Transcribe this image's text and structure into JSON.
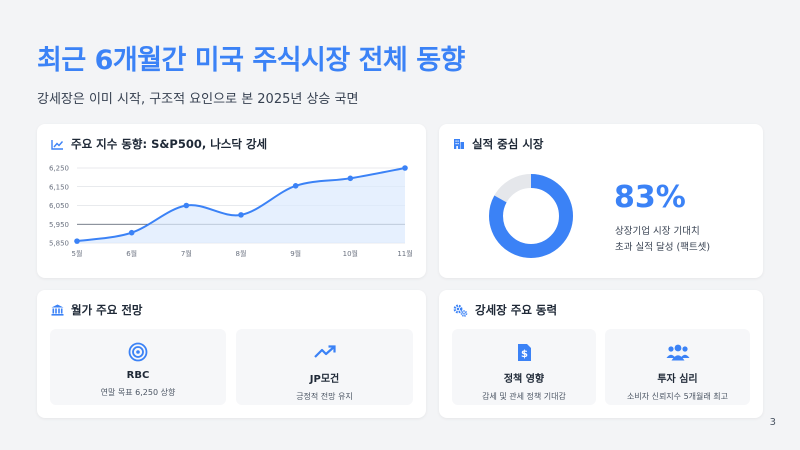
{
  "header": {
    "title": "최근 6개월간 미국 주식시장 전체 동향",
    "subtitle": "강세장은 이미 시작, 구조적 요인으로 본 2025년 상승 국면"
  },
  "chart_card": {
    "title": "주요 지수 동향: S&P500, 나스닥 강세",
    "icon": "line-chart-icon"
  },
  "chart_data": {
    "type": "area",
    "title": "주요 지수 동향: S&P500, 나스닥 강세",
    "categories": [
      "5월",
      "6월",
      "7월",
      "8월",
      "9월",
      "10월",
      "11월"
    ],
    "series": [
      {
        "values": [
          5860,
          5905,
          6050,
          6000,
          6155,
          6195,
          6250
        ]
      }
    ],
    "yticks": [
      "6,250",
      "6,150",
      "6,050",
      "5,950",
      "5,850"
    ],
    "ylim": [
      5850,
      6250
    ],
    "reference_line": 5950,
    "colors": {
      "line": "#3b82f6",
      "fill": "#dbeafe",
      "grid": "#d1d5db"
    }
  },
  "perf_card": {
    "title": "실적 중심 시장",
    "icon": "building-icon",
    "percent_label": "83%",
    "percent_value": 83,
    "desc_line1": "상장기업 시장 기대치",
    "desc_line2": "초과 실적 달성 (팩트셋)"
  },
  "wall_card": {
    "title": "월가 주요 전망",
    "icon": "bank-icon",
    "items": [
      {
        "title": "RBC",
        "desc": "연말 목표 6,250 상향",
        "icon": "target-icon"
      },
      {
        "title": "JP모건",
        "desc": "긍정적 전망 유지",
        "icon": "trend-up-icon"
      }
    ]
  },
  "drivers_card": {
    "title": "강세장 주요 동력",
    "icon": "gears-icon",
    "items": [
      {
        "title": "정책 영향",
        "desc": "감세 및 관세 정책 기대감",
        "icon": "dollar-document-icon"
      },
      {
        "title": "투자 심리",
        "desc": "소비자 신뢰지수 5개월래 최고",
        "icon": "users-icon"
      }
    ]
  },
  "page": {
    "number": "3"
  },
  "colors": {
    "accent": "#3b82f6",
    "donut_rest": "#e5e7eb"
  }
}
